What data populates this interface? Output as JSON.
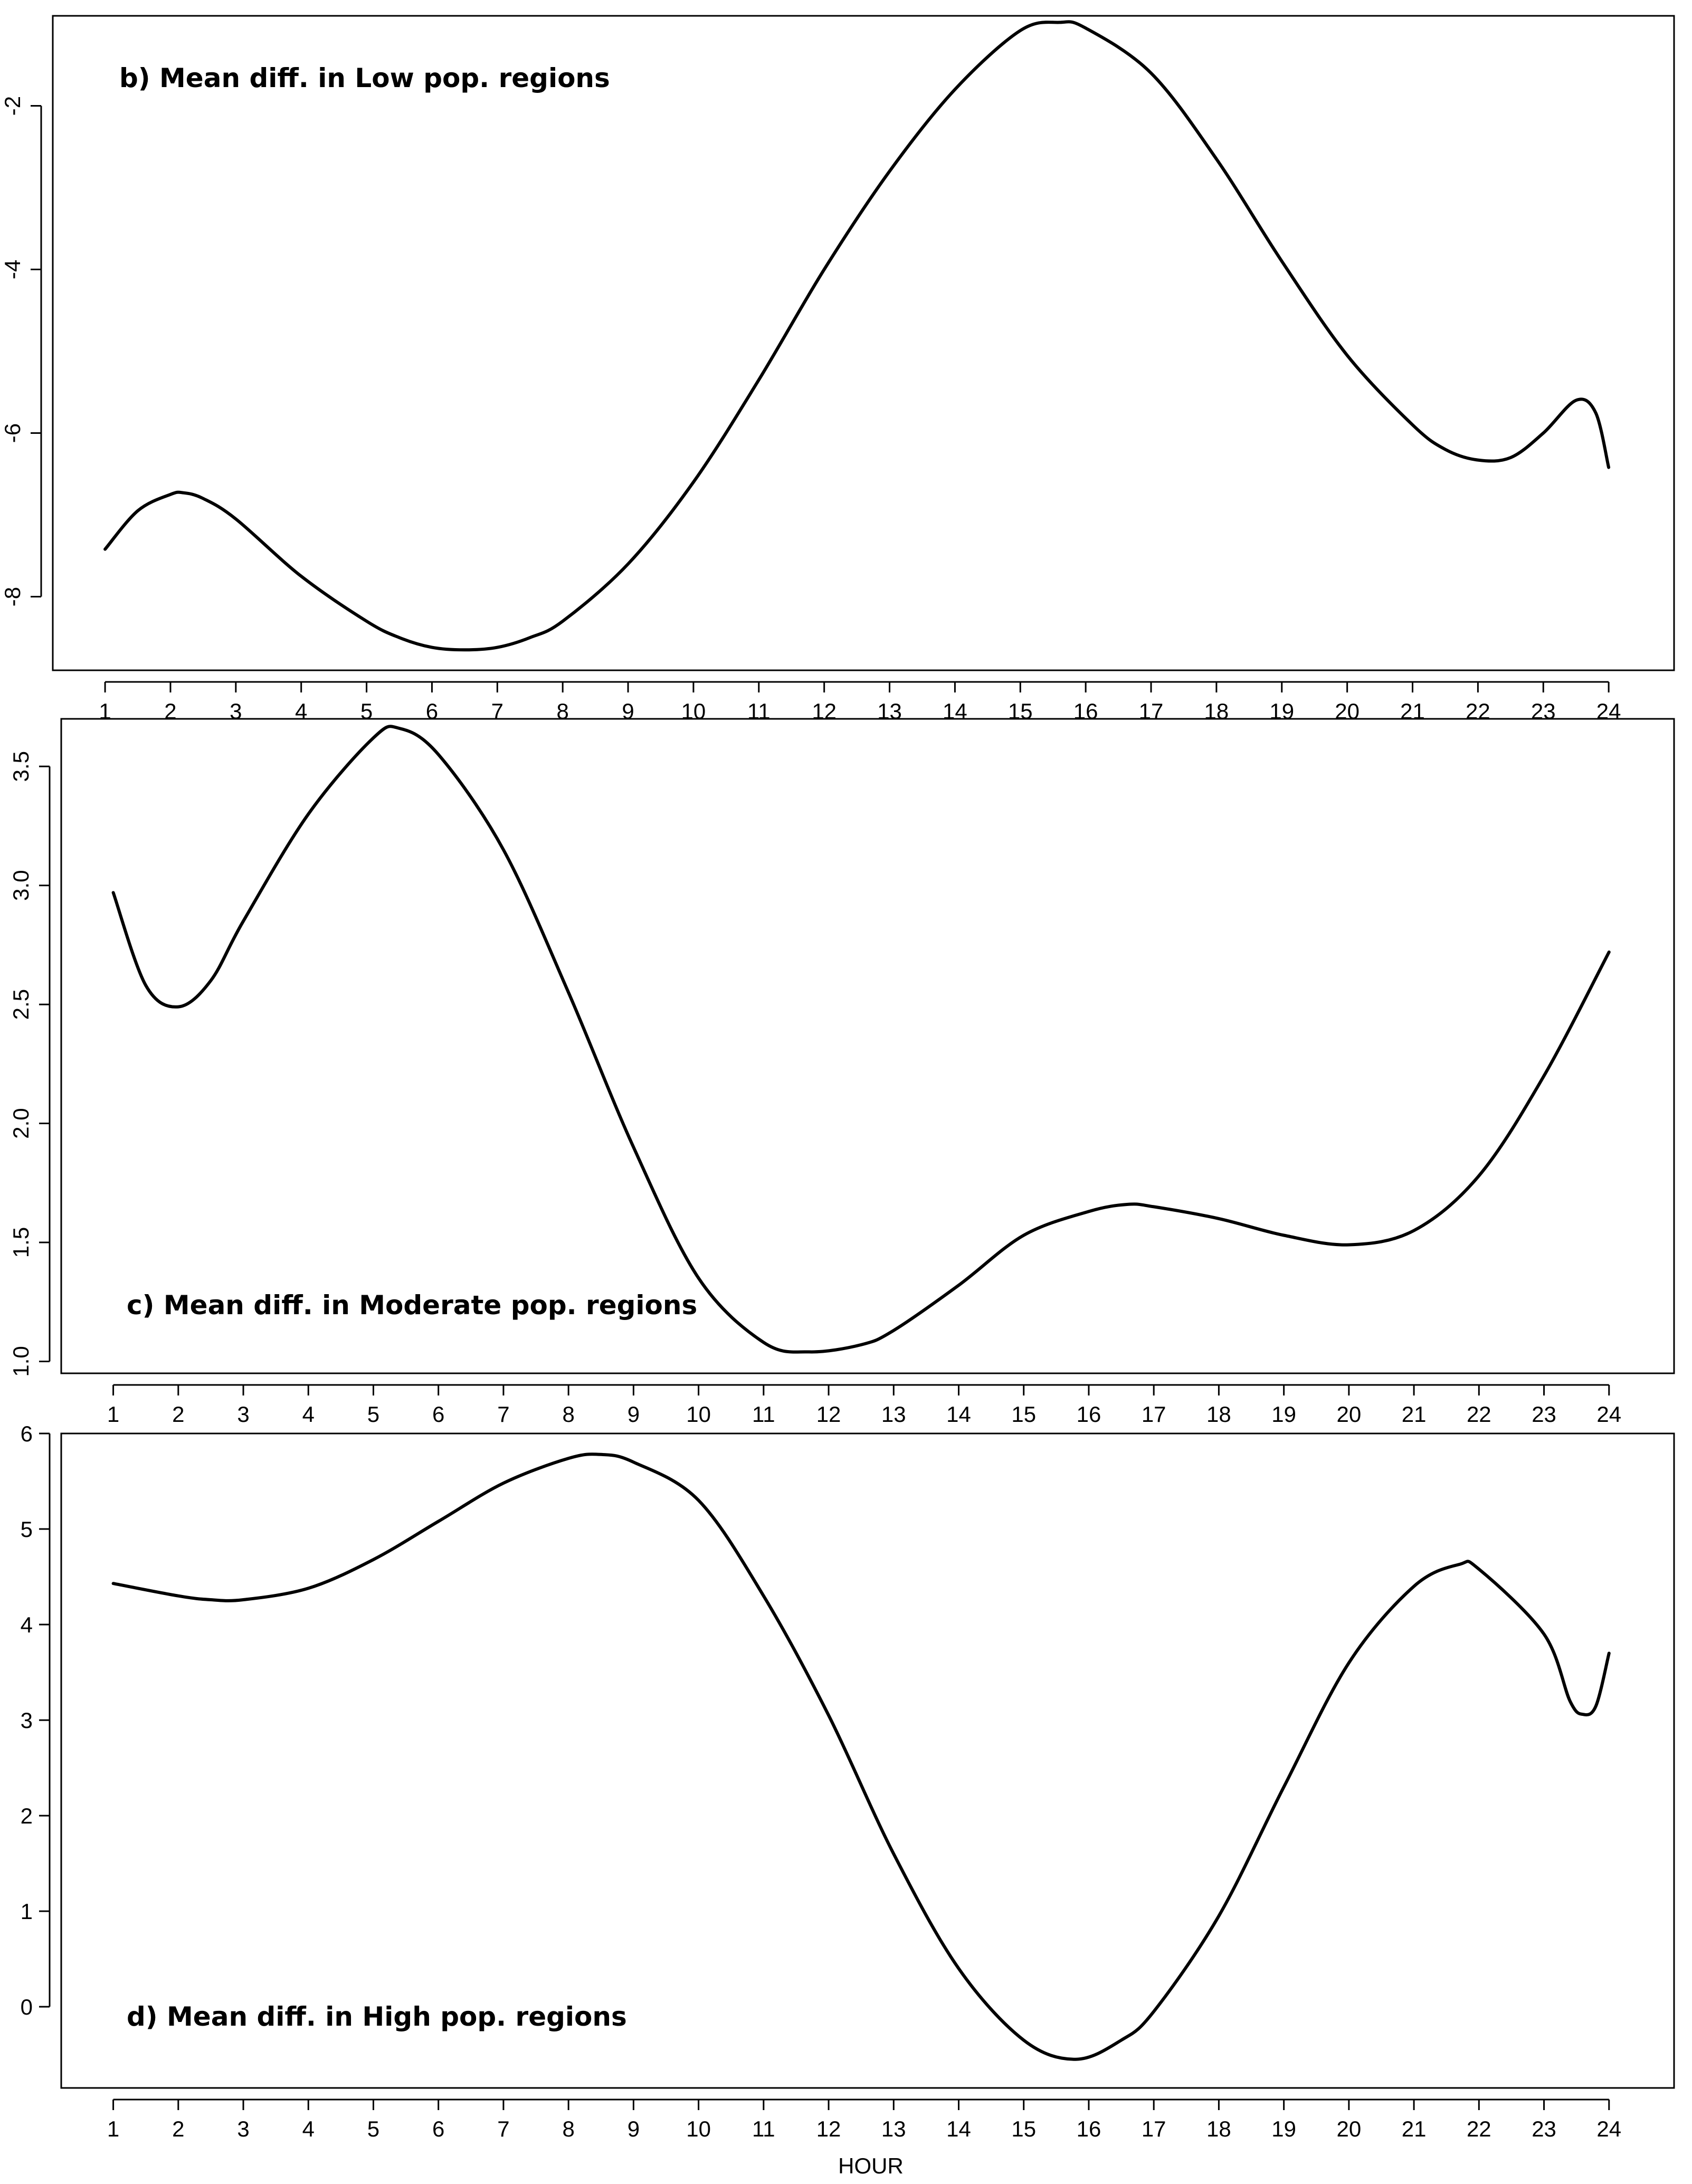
{
  "x_axis_title": "HOUR",
  "chart_data": [
    {
      "type": "line",
      "title": "b) Mean diff. in Low pop. regions",
      "xlabel": "",
      "ylabel": "",
      "x_ticks": [
        1,
        2,
        3,
        4,
        5,
        6,
        7,
        8,
        9,
        10,
        11,
        12,
        13,
        14,
        15,
        16,
        17,
        18,
        19,
        20,
        21,
        22,
        23,
        24
      ],
      "y_ticks": [
        -8,
        -6,
        -4,
        -2
      ],
      "y_tick_labels": [
        "-8",
        "-6",
        "-4",
        "-2"
      ],
      "y_tick_rotated": true,
      "xlim": [
        0.2,
        25.0
      ],
      "ylim": [
        -8.9,
        -0.9
      ],
      "series": [
        {
          "x": [
            1,
            1.5,
            2,
            2.2,
            2.5,
            3,
            4,
            5,
            5.5,
            6,
            6.5,
            7,
            7.5,
            8,
            9,
            10,
            11,
            12,
            13,
            14,
            15,
            15.6,
            16,
            17,
            18,
            19,
            20,
            21,
            21.5,
            22,
            22.5,
            23,
            23.5,
            23.8,
            24
          ],
          "y": [
            -7.42,
            -6.95,
            -6.75,
            -6.73,
            -6.8,
            -7.05,
            -7.75,
            -8.3,
            -8.5,
            -8.62,
            -8.65,
            -8.62,
            -8.5,
            -8.3,
            -7.6,
            -6.6,
            -5.35,
            -4.0,
            -2.8,
            -1.8,
            -1.08,
            -0.98,
            -1.05,
            -1.6,
            -2.65,
            -3.9,
            -5.05,
            -5.9,
            -6.2,
            -6.33,
            -6.3,
            -6.0,
            -5.6,
            -5.75,
            -6.42
          ]
        }
      ],
      "grid": false
    },
    {
      "type": "line",
      "title": "c) Mean diff. in Moderate pop. regions",
      "xlabel": "",
      "ylabel": "",
      "x_ticks": [
        1,
        2,
        3,
        4,
        5,
        6,
        7,
        8,
        9,
        10,
        11,
        12,
        13,
        14,
        15,
        16,
        17,
        18,
        19,
        20,
        21,
        22,
        23,
        24
      ],
      "y_ticks": [
        1.0,
        1.5,
        2.0,
        2.5,
        3.0,
        3.5
      ],
      "y_tick_labels": [
        "1.0",
        "1.5",
        "2.0",
        "2.5",
        "3.0",
        "3.5"
      ],
      "y_tick_rotated": true,
      "xlim": [
        0.2,
        25.0
      ],
      "ylim": [
        0.95,
        3.7
      ],
      "series": [
        {
          "x": [
            1,
            1.5,
            2,
            2.5,
            3,
            4,
            5,
            5.4,
            6,
            7,
            8,
            9,
            10,
            11,
            11.7,
            12.5,
            13,
            14,
            15,
            16,
            16.6,
            17,
            18,
            19,
            20,
            21,
            22,
            23,
            24
          ],
          "y": [
            2.97,
            2.58,
            2.49,
            2.6,
            2.85,
            3.3,
            3.62,
            3.66,
            3.55,
            3.15,
            2.55,
            1.9,
            1.35,
            1.08,
            1.04,
            1.07,
            1.13,
            1.32,
            1.53,
            1.63,
            1.66,
            1.65,
            1.6,
            1.53,
            1.49,
            1.55,
            1.78,
            2.2,
            2.72
          ]
        }
      ],
      "grid": false
    },
    {
      "type": "line",
      "title": "d) Mean diff. in High pop. regions",
      "xlabel": "HOUR",
      "ylabel": "",
      "x_ticks": [
        1,
        2,
        3,
        4,
        5,
        6,
        7,
        8,
        9,
        10,
        11,
        12,
        13,
        14,
        15,
        16,
        17,
        18,
        19,
        20,
        21,
        22,
        23,
        24
      ],
      "y_ticks": [
        0,
        1,
        2,
        3,
        4,
        5,
        6
      ],
      "y_tick_labels": [
        "0",
        "1",
        "2",
        "3",
        "4",
        "5",
        "6"
      ],
      "y_tick_rotated": false,
      "xlim": [
        0.2,
        25.0
      ],
      "ylim": [
        -0.85,
        6.0
      ],
      "series": [
        {
          "x": [
            1,
            2,
            2.5,
            3,
            4,
            5,
            6,
            7,
            8,
            8.5,
            9,
            10,
            11,
            12,
            13,
            14,
            15,
            15.8,
            16.5,
            17,
            18,
            19,
            20,
            21,
            21.7,
            22,
            23,
            23.4,
            23.6,
            23.8,
            24
          ],
          "y": [
            4.43,
            4.3,
            4.26,
            4.26,
            4.38,
            4.68,
            5.08,
            5.48,
            5.74,
            5.78,
            5.7,
            5.3,
            4.3,
            3.05,
            1.6,
            0.4,
            -0.35,
            -0.55,
            -0.35,
            -0.05,
            0.95,
            2.3,
            3.6,
            4.4,
            4.63,
            4.58,
            3.9,
            3.2,
            3.06,
            3.15,
            3.7
          ]
        }
      ],
      "grid": false
    }
  ]
}
